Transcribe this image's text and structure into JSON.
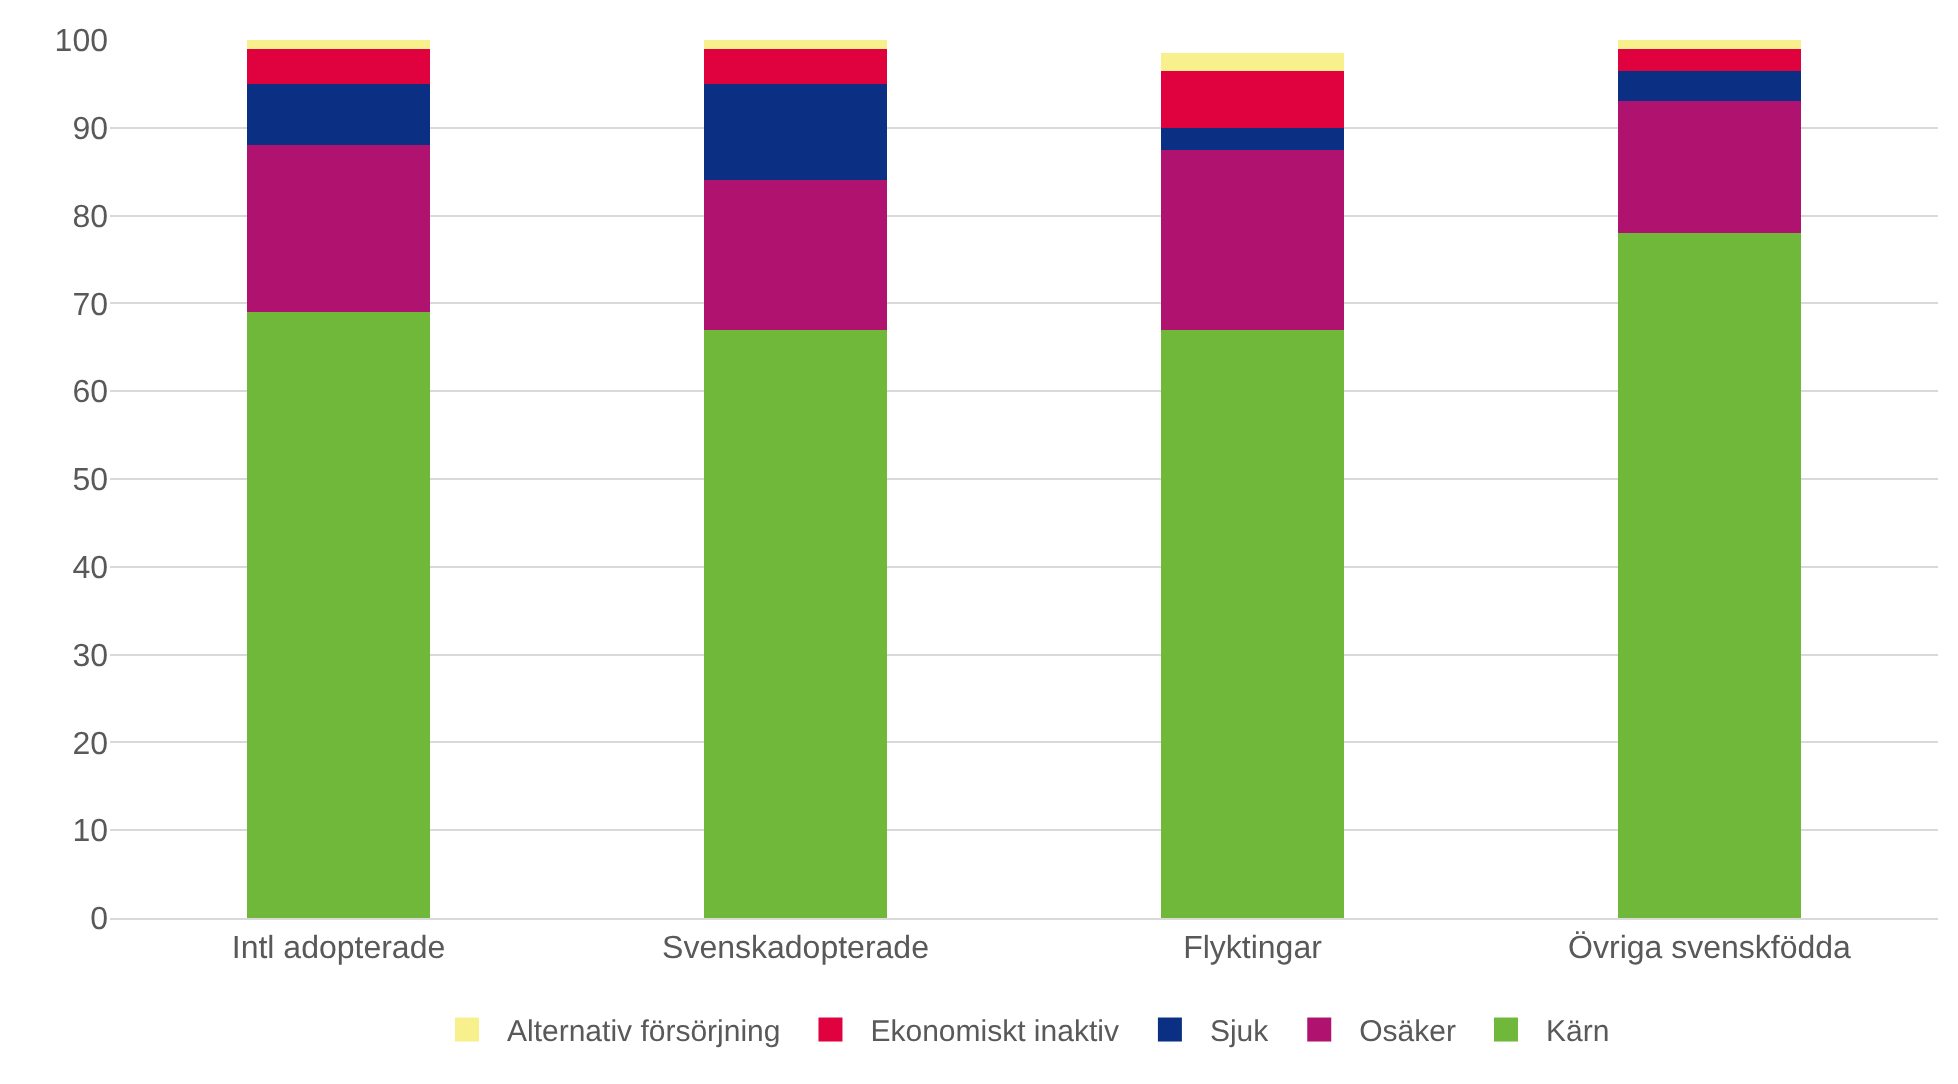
{
  "chart_data": {
    "type": "bar",
    "stacked": true,
    "categories": [
      "Intl adopterade",
      "Svenskadopterade",
      "Flyktingar",
      "Övriga svenskfödda"
    ],
    "series": [
      {
        "name": "Kärn",
        "color": "#6fb83a",
        "values": [
          69,
          67,
          67,
          78
        ]
      },
      {
        "name": "Osäker",
        "color": "#b0136f",
        "values": [
          19,
          17,
          20.5,
          15
        ]
      },
      {
        "name": "Sjuk",
        "color": "#0b2f82",
        "values": [
          7,
          11,
          2.5,
          3.5
        ]
      },
      {
        "name": "Ekonomiskt inaktiv",
        "color": "#e0023f",
        "values": [
          4,
          4,
          6.5,
          2.5
        ]
      },
      {
        "name": "Alternativ försörjning",
        "color": "#f8f08c",
        "values": [
          1,
          1,
          2,
          1
        ]
      }
    ],
    "ylim": [
      0,
      100
    ],
    "yticks": [
      0,
      10,
      20,
      30,
      40,
      50,
      60,
      70,
      80,
      90,
      100
    ],
    "grid": "y",
    "legend": "bottom"
  }
}
